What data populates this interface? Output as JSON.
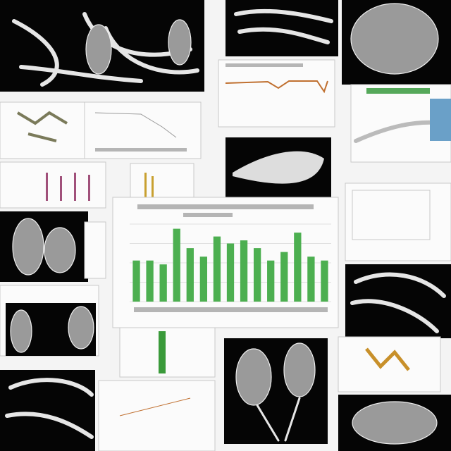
{
  "chart_data": {
    "type": "bar",
    "categories": [
      null,
      null,
      null,
      null,
      null,
      null,
      null,
      null,
      null,
      null,
      null,
      null,
      null,
      null,
      null
    ],
    "values": [
      53,
      53,
      48,
      94,
      69,
      58,
      84,
      75,
      79,
      69,
      53,
      64,
      89,
      58,
      53
    ],
    "color": "#4caf50",
    "ylim": [
      0,
      100
    ],
    "yticks": [
      0,
      25,
      50,
      75,
      100
    ],
    "grid": true
  }
}
